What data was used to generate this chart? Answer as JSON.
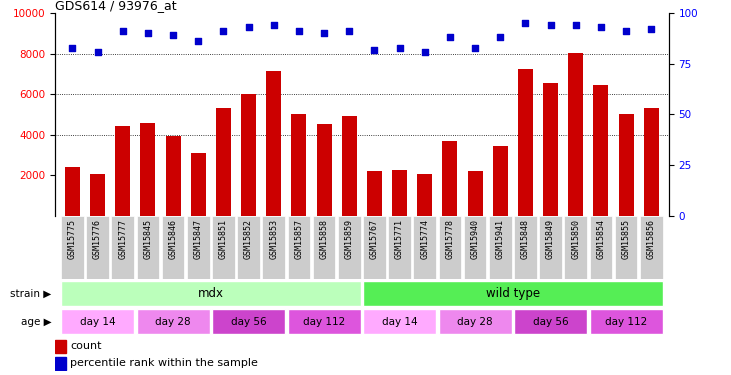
{
  "title": "GDS614 / 93976_at",
  "samples": [
    "GSM15775",
    "GSM15776",
    "GSM15777",
    "GSM15845",
    "GSM15846",
    "GSM15847",
    "GSM15851",
    "GSM15852",
    "GSM15853",
    "GSM15857",
    "GSM15858",
    "GSM15859",
    "GSM15767",
    "GSM15771",
    "GSM15774",
    "GSM15778",
    "GSM15940",
    "GSM15941",
    "GSM15848",
    "GSM15849",
    "GSM15850",
    "GSM15854",
    "GSM15855",
    "GSM15856"
  ],
  "counts": [
    2400,
    2050,
    4450,
    4550,
    3950,
    3100,
    5300,
    6000,
    7150,
    5000,
    4500,
    4900,
    2200,
    2250,
    2050,
    3700,
    2200,
    3450,
    7250,
    6550,
    8050,
    6450,
    5000,
    5300
  ],
  "percentiles": [
    83,
    81,
    91,
    90,
    89,
    86,
    91,
    93,
    94,
    91,
    90,
    91,
    82,
    83,
    81,
    88,
    83,
    88,
    95,
    94,
    94,
    93,
    91,
    92
  ],
  "strain_groups": [
    {
      "label": "mdx",
      "start": 0,
      "end": 11,
      "color": "#bbffbb"
    },
    {
      "label": "wild type",
      "start": 12,
      "end": 23,
      "color": "#55ee55"
    }
  ],
  "age_groups": [
    {
      "label": "day 14",
      "start": 0,
      "end": 2,
      "color": "#ffaaff"
    },
    {
      "label": "day 28",
      "start": 3,
      "end": 5,
      "color": "#ee88ee"
    },
    {
      "label": "day 56",
      "start": 6,
      "end": 8,
      "color": "#cc44cc"
    },
    {
      "label": "day 112",
      "start": 9,
      "end": 11,
      "color": "#dd55dd"
    },
    {
      "label": "day 14",
      "start": 12,
      "end": 14,
      "color": "#ffaaff"
    },
    {
      "label": "day 28",
      "start": 15,
      "end": 17,
      "color": "#ee88ee"
    },
    {
      "label": "day 56",
      "start": 18,
      "end": 20,
      "color": "#cc44cc"
    },
    {
      "label": "day 112",
      "start": 21,
      "end": 23,
      "color": "#dd55dd"
    }
  ],
  "bar_color": "#cc0000",
  "dot_color": "#0000cc",
  "ylim_left": [
    0,
    10000
  ],
  "yticks_left": [
    2000,
    4000,
    6000,
    8000,
    10000
  ],
  "yticks_right": [
    0,
    25,
    50,
    75,
    100
  ],
  "grid_values": [
    4000,
    6000,
    8000
  ],
  "age_colors_alternating": [
    "#ffaaff",
    "#ee88ee",
    "#cc44cc",
    "#dd55dd"
  ]
}
